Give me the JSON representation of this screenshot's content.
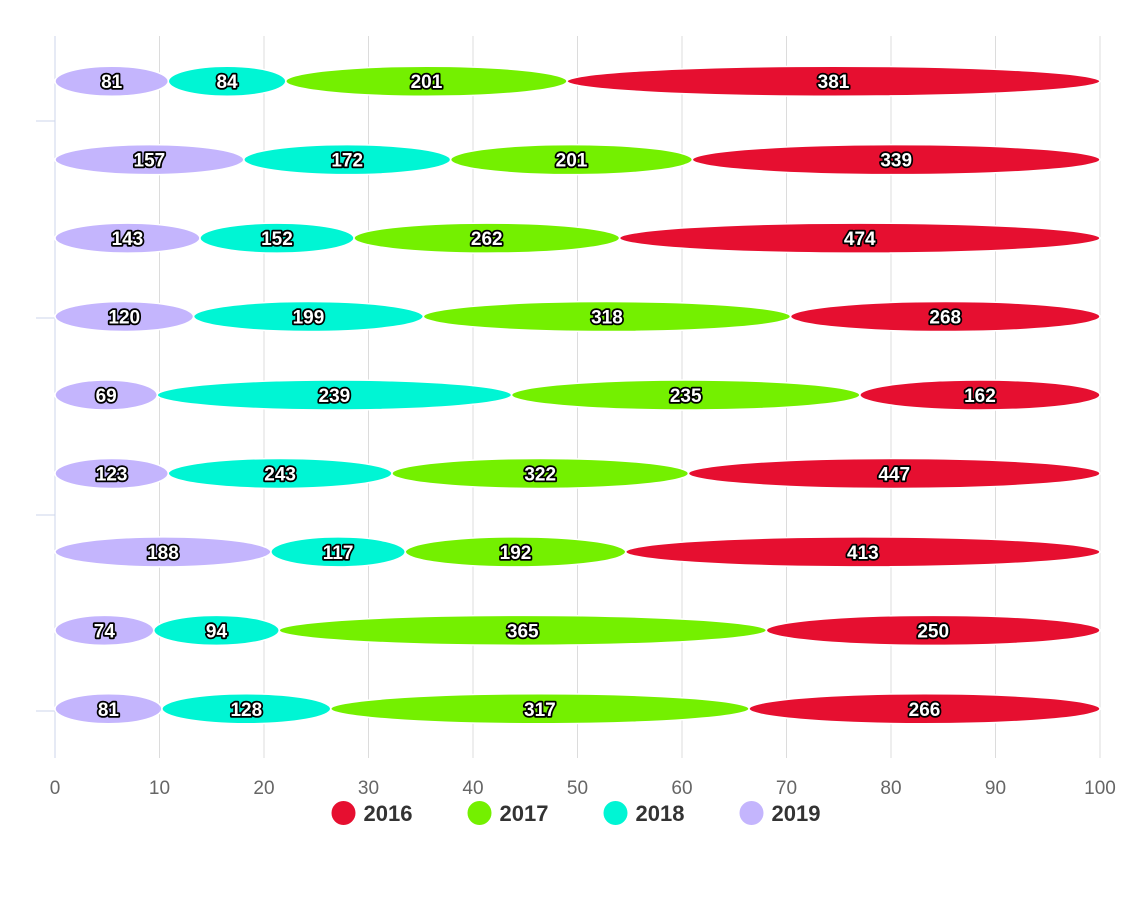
{
  "chart_data": {
    "type": "bar",
    "orientation": "horizontal",
    "stacking": "percent",
    "bar_shape": "ellipse",
    "xlim": [
      0,
      100
    ],
    "x_ticks": [
      0,
      10,
      20,
      30,
      40,
      50,
      60,
      70,
      80,
      90,
      100
    ],
    "grid": true,
    "legend_position": "bottom",
    "series": [
      {
        "name": "2016",
        "color": "#e60f30",
        "values": [
          381,
          339,
          474,
          268,
          162,
          447,
          413,
          250,
          266
        ]
      },
      {
        "name": "2017",
        "color": "#74f000",
        "values": [
          201,
          201,
          262,
          318,
          235,
          322,
          192,
          365,
          317
        ]
      },
      {
        "name": "2018",
        "color": "#00f5d4",
        "values": [
          84,
          172,
          152,
          199,
          239,
          243,
          117,
          94,
          128
        ]
      },
      {
        "name": "2019",
        "color": "#c4b5fd",
        "values": [
          81,
          157,
          143,
          120,
          69,
          123,
          188,
          74,
          81
        ]
      }
    ],
    "segment_order": [
      "2019",
      "2018",
      "2017",
      "2016"
    ]
  }
}
